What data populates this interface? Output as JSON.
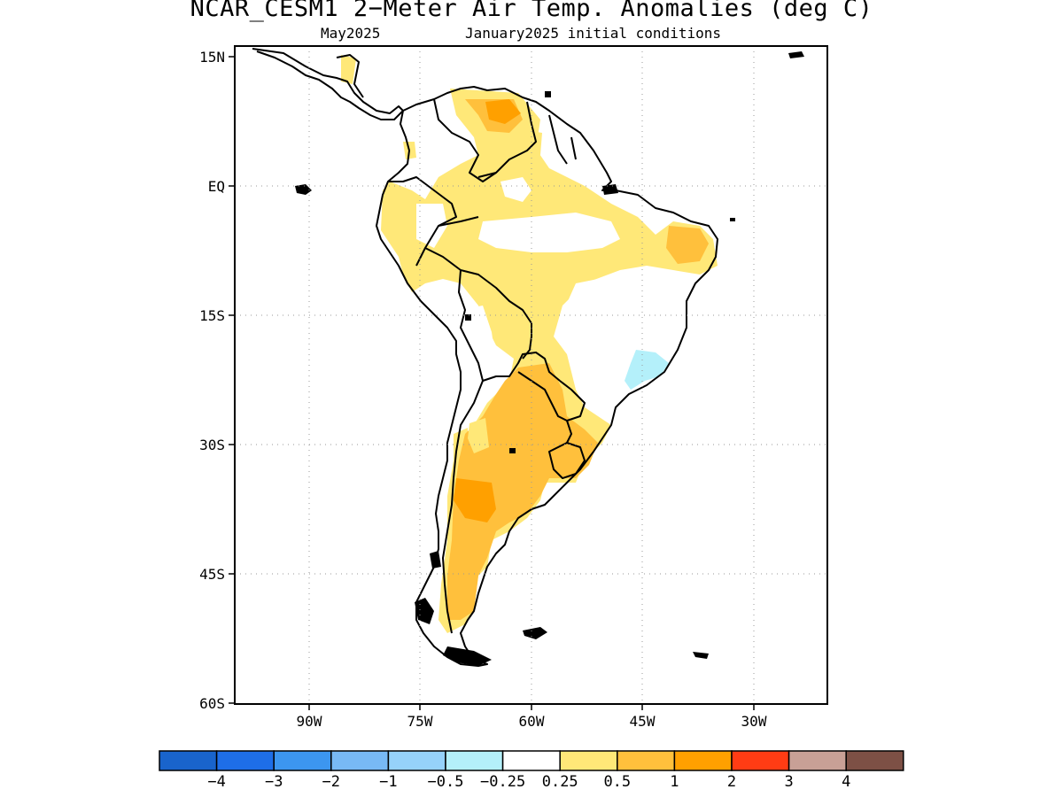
{
  "title": "NCAR_CESM1 2−Meter Air Temp. Anomalies (deg C)",
  "subtitle_left": "May2025",
  "subtitle_right": "January2025 initial conditions",
  "lat_ticks": [
    "15N",
    "EQ",
    "15S",
    "30S",
    "45S",
    "60S"
  ],
  "lon_ticks": [
    "90W",
    "75W",
    "60W",
    "45W",
    "30W"
  ],
  "colorbar": {
    "colors": [
      "#1964cc",
      "#1e6ee8",
      "#3c96f0",
      "#78b9f5",
      "#96d2fa",
      "#b4f0fa",
      "#ffffff",
      "#ffe878",
      "#ffc03c",
      "#ffa000",
      "#ff3c14",
      "#c8a096",
      "#7d5045"
    ],
    "labels": [
      "−4",
      "−3",
      "−2",
      "−1",
      "−0.5",
      "−0.25",
      "0.25",
      "0.5",
      "1",
      "2",
      "3",
      "4"
    ]
  },
  "anomaly_colors": {
    "light_yellow": "#ffe878",
    "orange_light": "#ffc03c",
    "orange": "#ffa000",
    "light_blue": "#b4f0fa"
  }
}
